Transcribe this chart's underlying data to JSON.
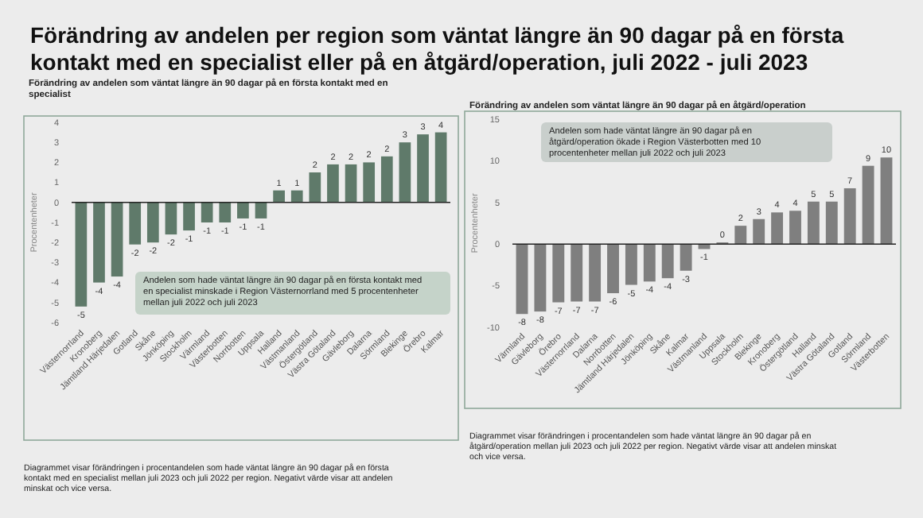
{
  "chart_data": [
    {
      "type": "bar",
      "title": "Förändring av andelen per region som väntat längre än 90 dagar på en första kontakt med en specialist eller på en åtgärd/operation, juli 2022 - juli 2023",
      "subtitle": "Förändring av andelen  som väntat längre än 90 dagar på en första kontakt med en specialist",
      "ylabel": "Procentenheter",
      "categories": [
        "Västernorrland",
        "Kronoberg",
        "Jämtland Härjedalen",
        "Gotland",
        "Skåne",
        "Jönköping",
        "Stockholm",
        "Värmland",
        "Västerbotten",
        "Norrbotten",
        "Uppsala",
        "Halland",
        "Västmanland",
        "Östergötland",
        "Västra Götaland",
        "Gävleborg",
        "Dalarna",
        "Sörmland",
        "Blekinge",
        "Örebro",
        "Kalmar"
      ],
      "values": [
        -5.2,
        -4.0,
        -3.7,
        -2.1,
        -2.0,
        -1.6,
        -1.4,
        -1.0,
        -1.0,
        -0.8,
        -0.8,
        0.6,
        0.6,
        1.5,
        1.9,
        1.9,
        2.0,
        2.3,
        3.0,
        3.4,
        3.5
      ],
      "value_labels": [
        "-5",
        "-4",
        "-4",
        "-2",
        "-2",
        "-2",
        "-1",
        "-1",
        "-1",
        "-1",
        "-1",
        "1",
        "1",
        "2",
        "2",
        "2",
        "2",
        "2",
        "3",
        "3",
        "4"
      ],
      "color": "#5f7a6a",
      "ylim": [
        -6,
        4
      ],
      "yticks": [
        -6,
        -5,
        -4,
        -3,
        -2,
        -1,
        0,
        1,
        2,
        3,
        4
      ],
      "annotations": [
        "Andelen som hade väntat längre än 90 dagar på en första kontakt med en specialist minskade i Region Västernorrland med 5 procentenheter mellan juli 2022 och juli 2023",
        "Diagrammet visar förändringen i procentandelen som hade väntat längre än 90 dagar på en första kontakt med en specialist mellan juli 2023 och juli 2022 per region. Negativt värde visar att andelen minskat och vice versa."
      ]
    },
    {
      "type": "bar",
      "title": "Förändring av andelen som väntat längre än 90 dagar på en åtgärd/operation",
      "ylabel": "Procentenheter",
      "categories": [
        "Värmland",
        "Gävleborg",
        "Örebro",
        "Västernorrland",
        "Dalarna",
        "Norrbotten",
        "Jämtland Härjedalen",
        "Jönköping",
        "Skåne",
        "Kalmar",
        "Västmanland",
        "Uppsala",
        "Stockholm",
        "Blekinge",
        "Kronoberg",
        "Östergötland",
        "Halland",
        "Västra Götaland",
        "Gotland",
        "Sörmland",
        "Västerbotten"
      ],
      "values": [
        -8.4,
        -8.1,
        -7.0,
        -6.9,
        -6.9,
        -5.9,
        -4.9,
        -4.5,
        -4.1,
        -3.2,
        -0.6,
        0.2,
        2.2,
        3.0,
        3.8,
        4.0,
        5.1,
        5.1,
        6.7,
        9.4,
        10.4
      ],
      "value_labels": [
        "-8",
        "-8",
        "-7",
        "-7",
        "-7",
        "-6",
        "-5",
        "-4",
        "-4",
        "-3",
        "-1",
        "0",
        "2",
        "3",
        "4",
        "4",
        "5",
        "5",
        "7",
        "9",
        "10"
      ],
      "color": "#7f7f7f",
      "ylim": [
        -10,
        15
      ],
      "yticks": [
        -10,
        -5,
        0,
        5,
        10,
        15
      ],
      "annotations": [
        "Andelen som hade väntat längre än 90 dagar på en åtgärd/operation ökade i Region Västerbotten med 10 procentenheter mellan juli 2022 och juli 2023",
        "Diagrammet visar förändringen i procentandelen som hade väntat längre än 90 dagar på en åtgärd/operation mellan juli 2023 och juli 2022 per region. Negativt värde visar att andelen minskat och vice versa."
      ]
    }
  ]
}
